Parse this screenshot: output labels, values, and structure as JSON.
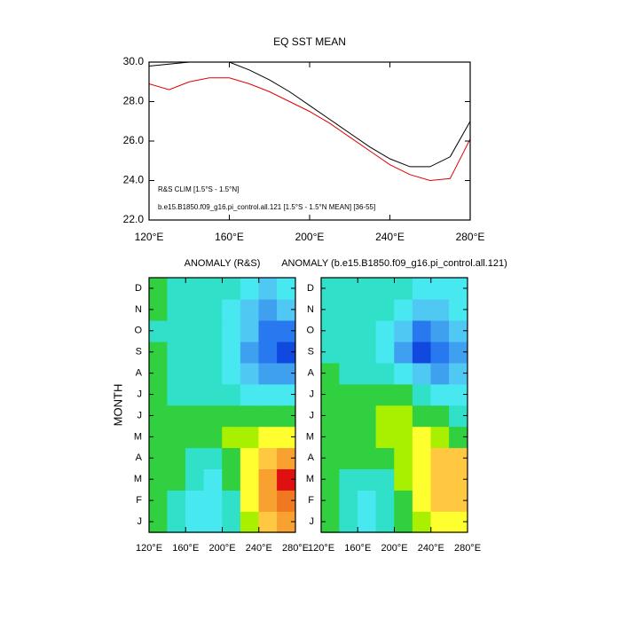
{
  "chart_data": [
    {
      "type": "line",
      "title": "EQ SST MEAN",
      "x": [
        120,
        130,
        140,
        150,
        160,
        170,
        180,
        190,
        200,
        210,
        220,
        230,
        240,
        250,
        260,
        270,
        280
      ],
      "series": [
        {
          "name": "R&S CLIM [1.5°S - 1.5°N]",
          "color": "#e00000",
          "values": [
            28.9,
            28.6,
            29.0,
            29.2,
            29.2,
            28.9,
            28.5,
            28.0,
            27.5,
            26.9,
            26.2,
            25.5,
            24.8,
            24.3,
            24.0,
            24.1,
            26.1
          ]
        },
        {
          "name": "b.e15.B1850.f09_g16.pi_control.all.121 [1.5°S - 1.5°N MEAN] [36-55]",
          "color": "#000000",
          "values": [
            29.8,
            29.9,
            30.0,
            30.0,
            30.0,
            29.6,
            29.1,
            28.5,
            27.8,
            27.1,
            26.4,
            25.7,
            25.1,
            24.7,
            24.7,
            25.2,
            27.0
          ]
        }
      ],
      "xlim": [
        120,
        280
      ],
      "xticks": [
        {
          "value": 120,
          "label": "120°E"
        },
        {
          "value": 160,
          "label": "160°E"
        },
        {
          "value": 200,
          "label": "200°E"
        },
        {
          "value": 240,
          "label": "240°E"
        },
        {
          "value": 280,
          "label": "280°E"
        }
      ],
      "ylim": [
        22,
        30
      ],
      "yticks": [
        {
          "value": 22,
          "label": "22.0"
        },
        {
          "value": 24,
          "label": "24.0"
        },
        {
          "value": 26,
          "label": "26.0"
        },
        {
          "value": 28,
          "label": "28.0"
        },
        {
          "value": 30,
          "label": "30.0"
        }
      ]
    },
    {
      "type": "heatmap",
      "title": "ANOMALY (R&S)",
      "ylabel": "MONTH",
      "x": [
        130,
        150,
        170,
        190,
        210,
        230,
        250,
        270
      ],
      "categories": [
        "J",
        "F",
        "M",
        "A",
        "M",
        "J",
        "J",
        "A",
        "S",
        "O",
        "N",
        "D"
      ],
      "values": [
        [
          0.4,
          0,
          -0.4,
          -0.4,
          0,
          0.8,
          1.6,
          2.0
        ],
        [
          0.4,
          0,
          -0.4,
          -0.4,
          0,
          1.2,
          2.0,
          2.4
        ],
        [
          0.4,
          0.4,
          0,
          -0.4,
          0.4,
          1.2,
          2.0,
          2.8
        ],
        [
          0.4,
          0.4,
          0,
          0,
          0.4,
          1.2,
          1.6,
          2.0
        ],
        [
          0.4,
          0.4,
          0.4,
          0.4,
          0.8,
          0.8,
          1.2,
          1.2
        ],
        [
          0.4,
          0.4,
          0.4,
          0.4,
          0.4,
          0.4,
          0.4,
          0.4
        ],
        [
          0.4,
          0,
          0,
          0,
          0,
          -0.4,
          -0.4,
          -0.4
        ],
        [
          0.4,
          0,
          0,
          0,
          -0.4,
          -0.8,
          -1.2,
          -1.2
        ],
        [
          0.4,
          0,
          0,
          0,
          -0.4,
          -1.2,
          -1.6,
          -2.0
        ],
        [
          0,
          0,
          0,
          0,
          -0.4,
          -0.8,
          -1.6,
          -1.6
        ],
        [
          0.4,
          0,
          0,
          0,
          -0.4,
          -0.8,
          -1.2,
          -0.8
        ],
        [
          0.4,
          0,
          0,
          0,
          0,
          -0.4,
          -0.8,
          -0.4
        ]
      ],
      "xlim": [
        120,
        280
      ],
      "xticks": [
        {
          "value": 120,
          "label": "120°E"
        },
        {
          "value": 160,
          "label": "160°E"
        },
        {
          "value": 200,
          "label": "200°E"
        },
        {
          "value": 240,
          "label": "240°E"
        },
        {
          "value": 280,
          "label": "280°E"
        }
      ],
      "levels": [
        -2.0,
        -1.6,
        -1.2,
        -0.8,
        -0.4,
        0,
        0.4,
        0.8,
        1.2,
        1.6,
        2.0,
        2.4,
        2.8
      ],
      "colors": [
        "#0028b8",
        "#1048e0",
        "#2878f0",
        "#40a0f0",
        "#50c8f4",
        "#48e8f0",
        "#30e0c8",
        "#30d040",
        "#a8f000",
        "#ffff30",
        "#ffc840",
        "#f8a030",
        "#f07820",
        "#e01010"
      ]
    },
    {
      "type": "heatmap",
      "title": "ANOMALY (b.e15.B1850.f09_g16.pi_control.all.121)",
      "x": [
        130,
        150,
        170,
        190,
        210,
        230,
        250,
        270
      ],
      "categories": [
        "J",
        "F",
        "M",
        "A",
        "M",
        "J",
        "J",
        "A",
        "S",
        "O",
        "N",
        "D"
      ],
      "values": [
        [
          0.4,
          0,
          -0.4,
          0,
          0.4,
          0.8,
          1.2,
          1.2
        ],
        [
          0.4,
          0,
          -0.4,
          0,
          0.4,
          1.2,
          1.6,
          1.6
        ],
        [
          0.4,
          0,
          0,
          0,
          0.8,
          1.2,
          1.6,
          1.6
        ],
        [
          0.4,
          0.4,
          0.4,
          0.4,
          0.8,
          1.2,
          1.6,
          1.6
        ],
        [
          0.4,
          0.4,
          0.4,
          0.8,
          0.8,
          1.2,
          0.8,
          0.4
        ],
        [
          0.4,
          0.4,
          0.4,
          0.8,
          0.8,
          0.4,
          0.4,
          0
        ],
        [
          0.4,
          0.4,
          0.4,
          0.4,
          0.4,
          0,
          -0.4,
          -0.4
        ],
        [
          0.4,
          0,
          0,
          0,
          -0.4,
          -0.8,
          -1.2,
          -0.8
        ],
        [
          0,
          0,
          0,
          -0.4,
          -1.2,
          -2.0,
          -1.6,
          -1.2
        ],
        [
          0,
          0,
          0,
          -0.4,
          -0.8,
          -1.6,
          -1.2,
          -0.8
        ],
        [
          0,
          0,
          0,
          0,
          -0.4,
          -0.8,
          -0.8,
          -0.4
        ],
        [
          0,
          0,
          0,
          0,
          0,
          -0.4,
          -0.4,
          -0.4
        ]
      ],
      "xlim": [
        120,
        280
      ],
      "xticks": [
        {
          "value": 120,
          "label": "120°E"
        },
        {
          "value": 160,
          "label": "160°E"
        },
        {
          "value": 200,
          "label": "200°E"
        },
        {
          "value": 240,
          "label": "240°E"
        },
        {
          "value": 280,
          "label": "280°E"
        }
      ],
      "levels": [
        -2.0,
        -1.6,
        -1.2,
        -0.8,
        -0.4,
        0,
        0.4,
        0.8,
        1.2,
        1.6,
        2.0,
        2.4,
        2.8
      ],
      "colors": [
        "#0028b8",
        "#1048e0",
        "#2878f0",
        "#40a0f0",
        "#50c8f4",
        "#48e8f0",
        "#30e0c8",
        "#30d040",
        "#a8f000",
        "#ffff30",
        "#ffc840",
        "#f8a030",
        "#f07820",
        "#e01010"
      ]
    }
  ]
}
